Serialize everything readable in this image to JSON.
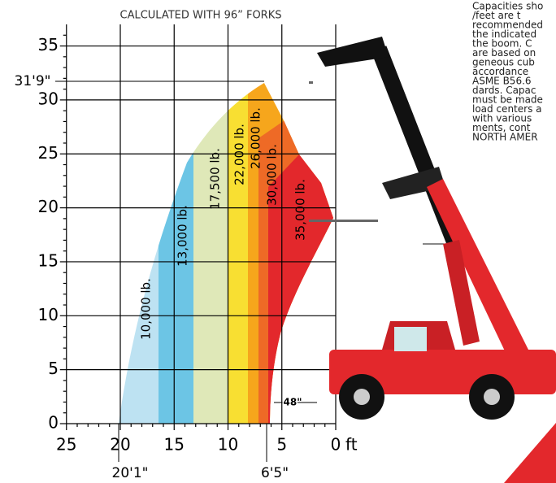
{
  "header": {
    "title": "CALCULATED WITH 96” FORKS"
  },
  "y_axis": {
    "ticks": [
      "0",
      "5",
      "10",
      "15",
      "20",
      "25",
      "30",
      "35"
    ]
  },
  "x_axis": {
    "ticks": [
      "25",
      "20",
      "15",
      "10",
      "5",
      "0"
    ],
    "unit": "ft"
  },
  "annotations": {
    "max_height": "31'9\"",
    "max_reach": "20'1\"",
    "reach_at_max_height": "6'5\"",
    "fork_length": "48\""
  },
  "zones": [
    {
      "label": "10,000 lb."
    },
    {
      "label": "13,000 lb."
    },
    {
      "label": "17,500 lb."
    },
    {
      "label": "22,000 lb."
    },
    {
      "label": "26,000 lb."
    },
    {
      "label": "30,000 lb."
    },
    {
      "label": "35,000 lb."
    }
  ],
  "description": {
    "lines": [
      "Capacities sho",
      "/feet are t",
      "recommended",
      "the indicated",
      "the boom. C",
      "are based on",
      "geneous cub",
      "accordance",
      "ASME B56.6",
      "dards. Capac",
      "must be made",
      "load centers a",
      "with various",
      "ments, cont",
      "NORTH AMER"
    ]
  }
}
